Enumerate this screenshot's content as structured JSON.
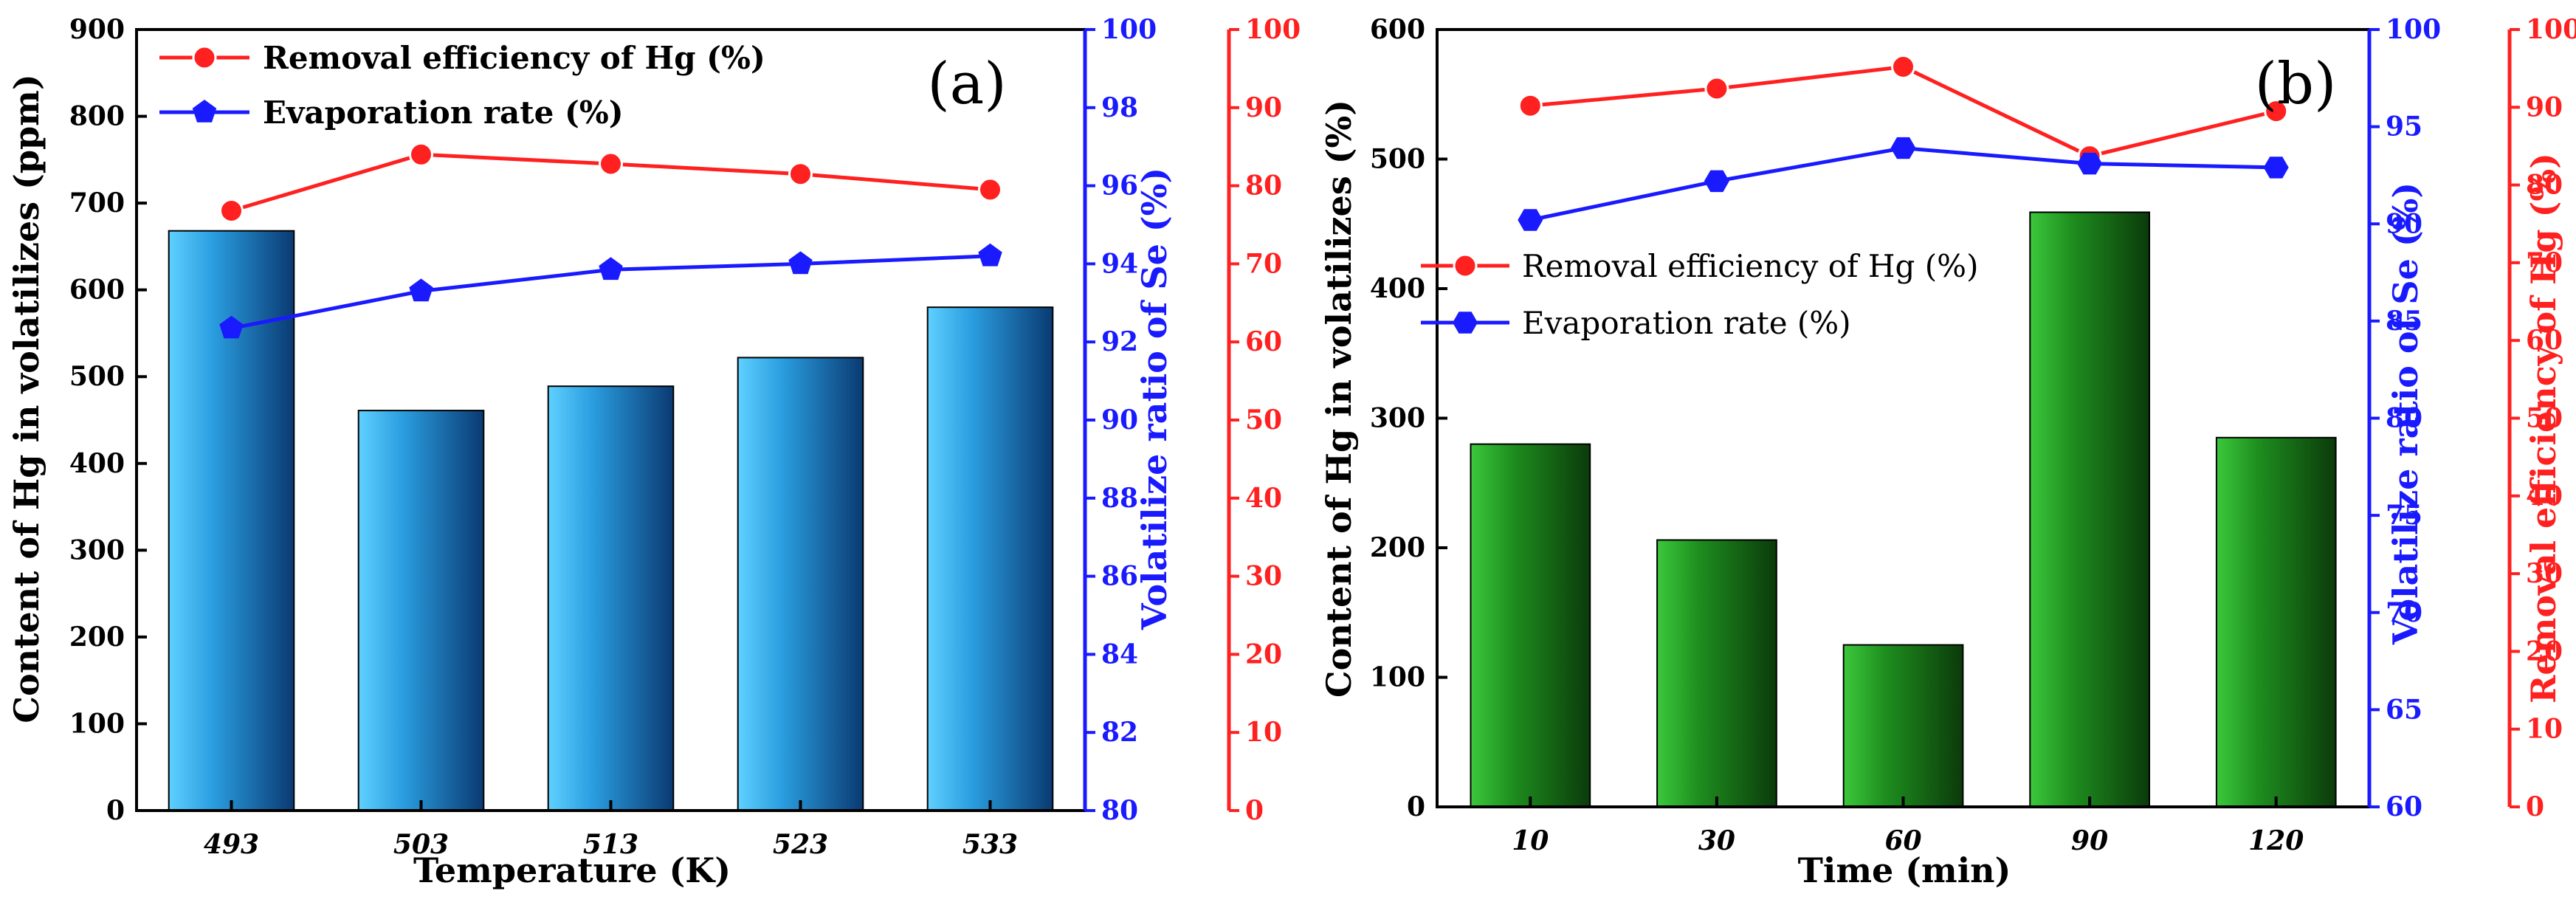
{
  "colors": {
    "removal": "#ff2020",
    "evaporation": "#1a1aff",
    "panel_a_bar_light": "#5fd0ff",
    "panel_a_bar_dark": "#0a3a72",
    "panel_b_bar_light": "#3cc83c",
    "panel_b_bar_dark": "#0b3a0b",
    "axis_left": "#000000",
    "axis_mid": "#1a1aff",
    "axis_right": "#ff2020"
  },
  "chart_data": [
    {
      "type": "bar",
      "panel_label": "(a)",
      "categories": [
        "493",
        "503",
        "513",
        "523",
        "533"
      ],
      "bar_values": [
        668,
        461,
        489,
        522,
        580
      ],
      "xlabel": "Temperature (K)",
      "ylabel": "Content of  Hg in volatilizes (ppm)",
      "ylim": [
        0,
        900
      ],
      "yticks": [
        "0",
        "100",
        "200",
        "300",
        "400",
        "500",
        "600",
        "700",
        "800",
        "900"
      ],
      "y2label": "Volatilize ratio of Se (%)",
      "y2lim": [
        80,
        100
      ],
      "y2ticks": [
        "80",
        "82",
        "84",
        "86",
        "88",
        "90",
        "92",
        "94",
        "96",
        "98",
        "100"
      ],
      "y3label": "",
      "y3lim": [
        0,
        100
      ],
      "y3ticks": [
        "0",
        "10",
        "20",
        "30",
        "40",
        "50",
        "60",
        "70",
        "80",
        "90",
        "100"
      ],
      "series": [
        {
          "name": "Removal efficiency of Hg (%)",
          "axis": "y3",
          "marker": "circle",
          "values": [
            76.8,
            84.0,
            82.8,
            81.5,
            79.5
          ]
        },
        {
          "name": "Evaporation rate (%)",
          "axis": "y2",
          "marker": "pentagon",
          "values": [
            92.35,
            93.3,
            93.85,
            94.0,
            94.2
          ]
        }
      ],
      "legend_position": "top-left"
    },
    {
      "type": "bar",
      "panel_label": "(b)",
      "categories": [
        "10",
        "30",
        "60",
        "90",
        "120"
      ],
      "bar_values": [
        280,
        206,
        125,
        459,
        285
      ],
      "xlabel": "Time (min)",
      "ylabel": "Content of  Hg in volatilizes (%)",
      "ylim": [
        0,
        600
      ],
      "yticks": [
        "0",
        "100",
        "200",
        "300",
        "400",
        "500",
        "600"
      ],
      "y2label": "Volatilize ratio of Se (%)",
      "y2lim": [
        60,
        100
      ],
      "y2ticks": [
        "60",
        "65",
        "70",
        "75",
        "80",
        "85",
        "90",
        "95",
        "100"
      ],
      "y3label": "Removal efficiency of  Hg (%)",
      "y3lim": [
        0,
        100
      ],
      "y3ticks": [
        "0",
        "10",
        "20",
        "30",
        "40",
        "50",
        "60",
        "70",
        "80",
        "90",
        "100"
      ],
      "series": [
        {
          "name": "Removal efficiency of Hg (%)",
          "axis": "y3",
          "marker": "circle",
          "values": [
            90.2,
            92.4,
            95.2,
            83.7,
            89.5
          ]
        },
        {
          "name": "Evaporation rate (%)",
          "axis": "y2",
          "marker": "hexagon",
          "values": [
            90.2,
            92.2,
            93.9,
            93.1,
            92.9
          ]
        }
      ],
      "legend_position": "middle-left"
    }
  ]
}
